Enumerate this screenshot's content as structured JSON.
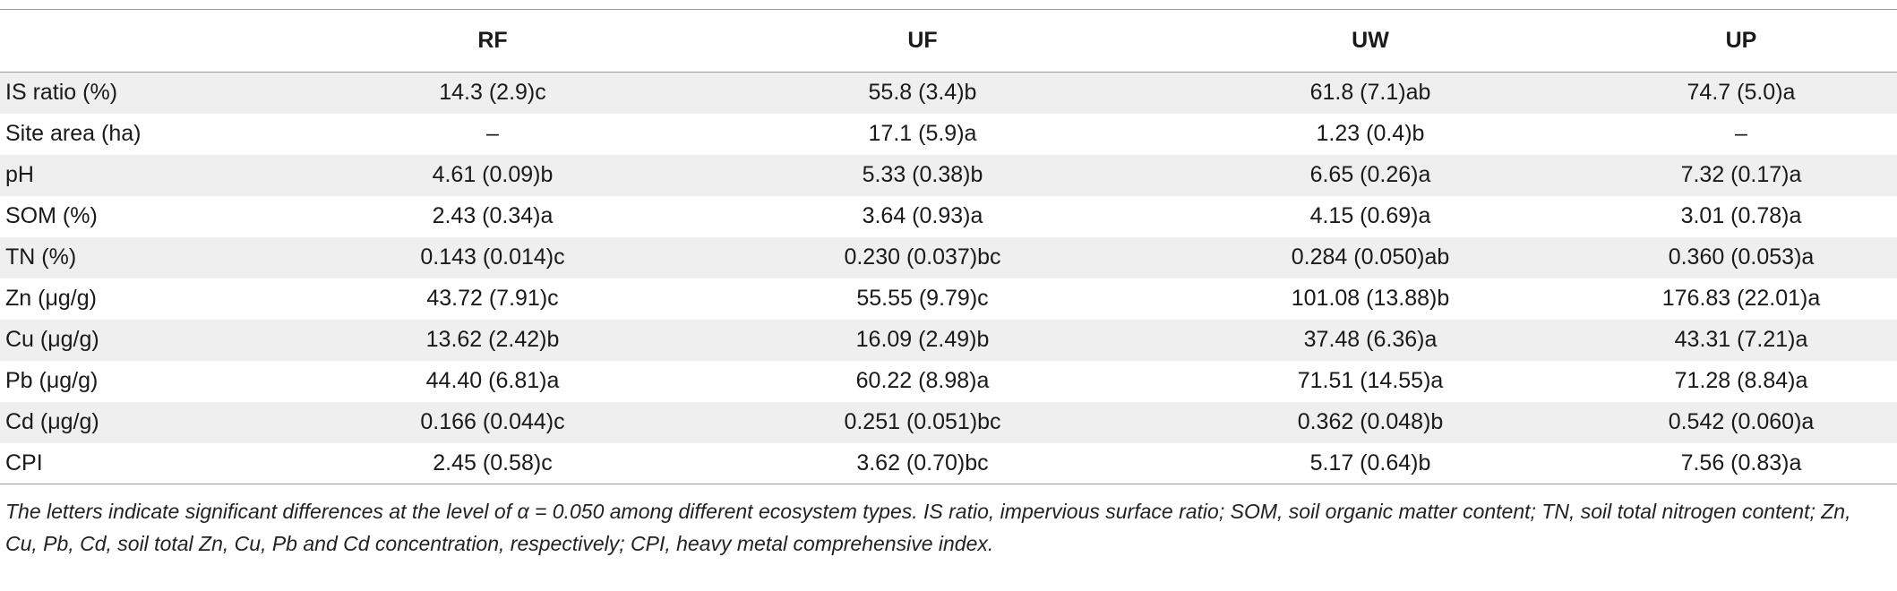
{
  "table": {
    "headers": [
      "",
      "RF",
      "UF",
      "UW",
      "UP"
    ],
    "rows": [
      [
        "IS ratio (%)",
        "14.3 (2.9)c",
        "55.8 (3.4)b",
        "61.8 (7.1)ab",
        "74.7 (5.0)a"
      ],
      [
        "Site area (ha)",
        "–",
        "17.1 (5.9)a",
        "1.23 (0.4)b",
        "–"
      ],
      [
        "pH",
        "4.61 (0.09)b",
        "5.33 (0.38)b",
        "6.65 (0.26)a",
        "7.32 (0.17)a"
      ],
      [
        "SOM (%)",
        "2.43 (0.34)a",
        "3.64 (0.93)a",
        "4.15 (0.69)a",
        "3.01 (0.78)a"
      ],
      [
        "TN (%)",
        "0.143 (0.014)c",
        "0.230 (0.037)bc",
        "0.284 (0.050)ab",
        "0.360 (0.053)a"
      ],
      [
        "Zn (μg/g)",
        "43.72 (7.91)c",
        "55.55 (9.79)c",
        "101.08 (13.88)b",
        "176.83 (22.01)a"
      ],
      [
        "Cu (μg/g)",
        "13.62 (2.42)b",
        "16.09 (2.49)b",
        "37.48 (6.36)a",
        "43.31 (7.21)a"
      ],
      [
        "Pb (μg/g)",
        "44.40 (6.81)a",
        "60.22 (8.98)a",
        "71.51 (14.55)a",
        "71.28 (8.84)a"
      ],
      [
        "Cd (μg/g)",
        "0.166 (0.044)c",
        "0.251 (0.051)bc",
        "0.362 (0.048)b",
        "0.542 (0.060)a"
      ],
      [
        "CPI",
        "2.45 (0.58)c",
        "3.62 (0.70)bc",
        "5.17 (0.64)b",
        "7.56 (0.83)a"
      ]
    ]
  },
  "footnote": "The letters indicate significant differences at the level of α = 0.050 among different ecosystem types. IS ratio, impervious surface ratio; SOM, soil organic matter content; TN, soil total nitrogen content; Zn, Cu, Pb, Cd, soil total Zn, Cu, Pb and Cd concentration, respectively; CPI, heavy metal comprehensive index."
}
